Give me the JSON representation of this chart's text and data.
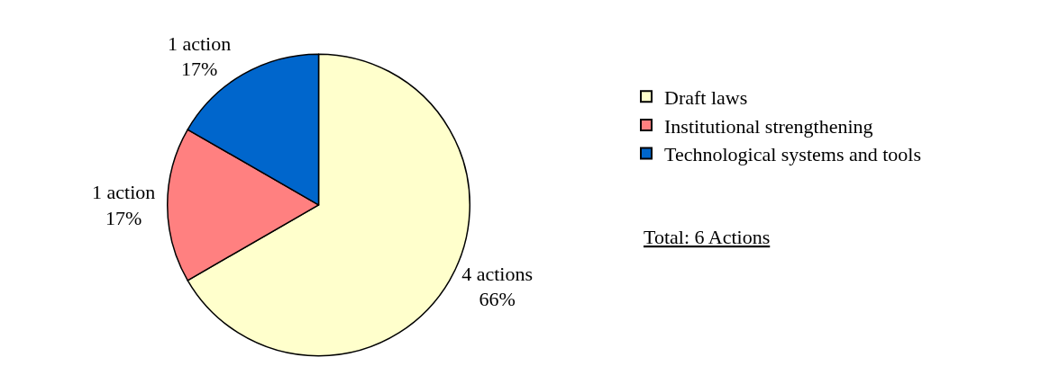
{
  "chart_data": {
    "type": "pie",
    "categories": [
      "Draft laws",
      "Institutional strengthening",
      "Technological systems and tools"
    ],
    "values": [
      4,
      1,
      1
    ],
    "value_labels": [
      "4 actions\n66%",
      "1 action\n17%",
      "1 action\n17%"
    ],
    "colors": [
      "#ffffcc",
      "#ff8080",
      "#0066cc"
    ],
    "legend": "right",
    "annotations": [
      "Total: 6 Actions"
    ]
  }
}
